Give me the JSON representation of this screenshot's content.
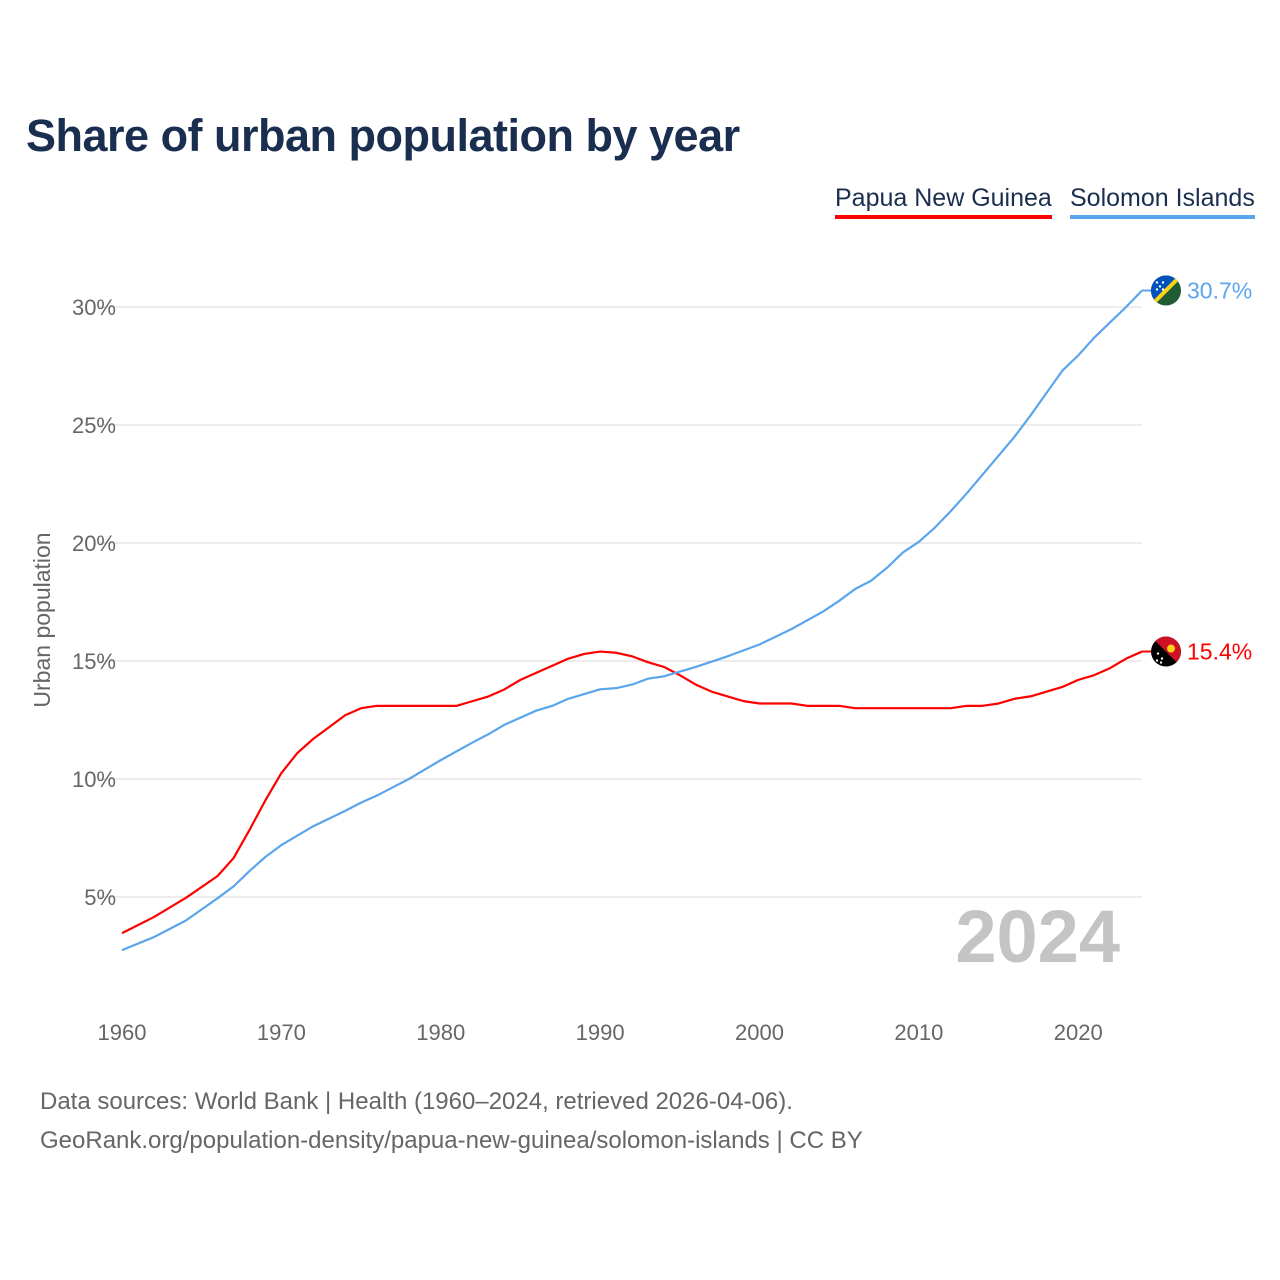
{
  "chart_data": {
    "type": "line",
    "title": "Share of urban population by year",
    "ylabel": "Urban population",
    "xlabel": "",
    "xlim": [
      1960,
      2024
    ],
    "ylim": [
      0,
      32
    ],
    "x_ticks": [
      1960,
      1970,
      1980,
      1990,
      2000,
      2010,
      2020
    ],
    "x_tick_labels": [
      "1960",
      "1970",
      "1980",
      "1990",
      "2000",
      "2010",
      "2020"
    ],
    "y_ticks": [
      5,
      10,
      15,
      20,
      25,
      30
    ],
    "y_tick_labels": [
      "5%",
      "10%",
      "15%",
      "20%",
      "25%",
      "30%"
    ],
    "grid": true,
    "legend_placement": "top-right",
    "year_watermark": "2024",
    "series": [
      {
        "name": "Papua New Guinea",
        "color": "#ff0000",
        "end_label": "15.4%",
        "x": [
          1960,
          1962,
          1964,
          1966,
          1967,
          1968,
          1969,
          1970,
          1971,
          1972,
          1973,
          1974,
          1975,
          1976,
          1981,
          1982,
          1983,
          1984,
          1985,
          1986,
          1987,
          1988,
          1989,
          1990,
          1991,
          1992,
          1993,
          1994,
          1995,
          1996,
          1997,
          1998,
          1999,
          2000,
          2002,
          2003,
          2005,
          2006,
          2012,
          2013,
          2014,
          2015,
          2016,
          2017,
          2018,
          2019,
          2020,
          2021,
          2022,
          2023,
          2024
        ],
        "values": [
          3.47,
          4.15,
          4.96,
          5.89,
          6.65,
          7.84,
          9.1,
          10.25,
          11.1,
          11.7,
          12.2,
          12.7,
          13.0,
          13.1,
          13.1,
          13.3,
          13.5,
          13.8,
          14.2,
          14.5,
          14.8,
          15.1,
          15.3,
          15.4,
          15.35,
          15.2,
          14.95,
          14.75,
          14.4,
          14.0,
          13.7,
          13.5,
          13.3,
          13.2,
          13.2,
          13.1,
          13.1,
          13.0,
          13.0,
          13.1,
          13.1,
          13.2,
          13.4,
          13.5,
          13.7,
          13.9,
          14.2,
          14.4,
          14.7,
          15.1,
          15.4
        ]
      },
      {
        "name": "Solomon Islands",
        "color": "#5aa5ec",
        "end_label": "30.7%",
        "x": [
          1960,
          1962,
          1964,
          1966,
          1967,
          1968,
          1969,
          1970,
          1972,
          1974,
          1975,
          1976,
          1978,
          1980,
          1982,
          1983,
          1984,
          1986,
          1987,
          1988,
          1990,
          1991,
          1992,
          1993,
          1994,
          1996,
          1998,
          2000,
          2002,
          2004,
          2005,
          2006,
          2007,
          2008,
          2009,
          2010,
          2011,
          2012,
          2013,
          2014,
          2015,
          2016,
          2017,
          2018,
          2019,
          2020,
          2021,
          2022,
          2023,
          2024
        ],
        "values": [
          2.75,
          3.3,
          4.0,
          4.95,
          5.45,
          6.1,
          6.7,
          7.2,
          8.0,
          8.65,
          9.0,
          9.3,
          10.0,
          10.8,
          11.55,
          11.9,
          12.3,
          12.9,
          13.1,
          13.4,
          13.8,
          13.85,
          14.0,
          14.25,
          14.35,
          14.75,
          15.2,
          15.7,
          16.35,
          17.1,
          17.55,
          18.05,
          18.4,
          18.95,
          19.6,
          20.05,
          20.65,
          21.35,
          22.1,
          22.9,
          23.7,
          24.5,
          25.4,
          26.35,
          27.3,
          27.95,
          28.7,
          29.35,
          30.0,
          30.7
        ]
      }
    ]
  },
  "legend": {
    "png": "Papua New Guinea",
    "sol": "Solomon Islands"
  },
  "footer": {
    "line1": "Data sources: World Bank | Health (1960–2024, retrieved 2026-04-06).",
    "line2": "GeoRank.org/population-density/papua-new-guinea/solomon-islands | CC BY"
  }
}
